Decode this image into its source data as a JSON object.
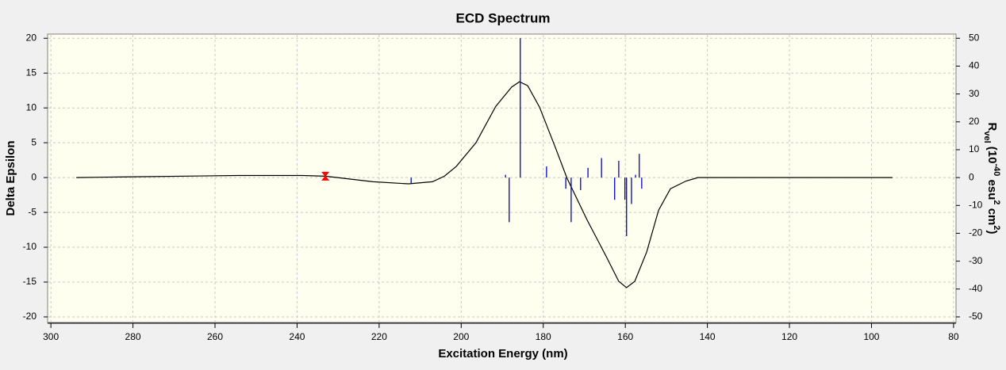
{
  "chart_data": {
    "type": "line",
    "title": "ECD Spectrum",
    "xlabel": "Excitation Energy (nm)",
    "ylabel": "Delta Epsilon",
    "y2label": [
      "R",
      "vel",
      " (10",
      "-40",
      " esu",
      "2",
      " cm",
      "2",
      ")"
    ],
    "xlim": [
      300.8,
      79.4
    ],
    "xticks": [
      300,
      280,
      260,
      240,
      220,
      200,
      180,
      160,
      140,
      120,
      100,
      80
    ],
    "ylim": [
      -20.8,
      20.6
    ],
    "yticks": [
      -20,
      -15,
      -10,
      -5,
      0,
      5,
      10,
      15,
      20
    ],
    "y2lim": [
      -52,
      51.5
    ],
    "y2ticks": [
      -50,
      -40,
      -30,
      -20,
      -10,
      0,
      10,
      20,
      30,
      40,
      50
    ],
    "grid": true,
    "series": [
      {
        "type": "line",
        "color": "#000000",
        "x": [
          293.8,
          281.4,
          254.4,
          238.9,
          233.1,
          221.5,
          212.8,
          207,
          204.1,
          201.2,
          196.4,
          191.6,
          187.7,
          185.8,
          183.8,
          180.9,
          177.1,
          174.2,
          169.3,
          164.5,
          161.6,
          159.7,
          157.7,
          154.8,
          151.9,
          149,
          145.2,
          142.3,
          94.9
        ],
        "values": [
          0,
          0.1,
          0.3,
          0.3,
          0.2,
          -0.6,
          -0.9,
          -0.6,
          0.2,
          1.6,
          5,
          10.2,
          13,
          13.75,
          13.2,
          10.1,
          4.4,
          -0.1,
          -6.1,
          -11.5,
          -14.9,
          -15.8,
          -14.9,
          -10.7,
          -4.7,
          -1.6,
          -0.5,
          0,
          0
        ]
      },
      {
        "type": "stick",
        "axis": "y2",
        "color": "#0000cc",
        "x": [
          212.2,
          189.2,
          188.3,
          185.6,
          179.2,
          174.5,
          173.2,
          170.9,
          169.1,
          165.8,
          162.6,
          161.6,
          160.1,
          159.7,
          158.5,
          157.5,
          156.6,
          156
        ],
        "values": [
          -2,
          1,
          -16,
          50,
          4,
          -4,
          -16,
          -4.5,
          3.5,
          7,
          -8,
          6,
          -8,
          -21,
          -9.5,
          1,
          8.5,
          -4
        ]
      }
    ],
    "marker": {
      "x": 233.1,
      "y": 0.2,
      "color": "#ff0000"
    }
  }
}
